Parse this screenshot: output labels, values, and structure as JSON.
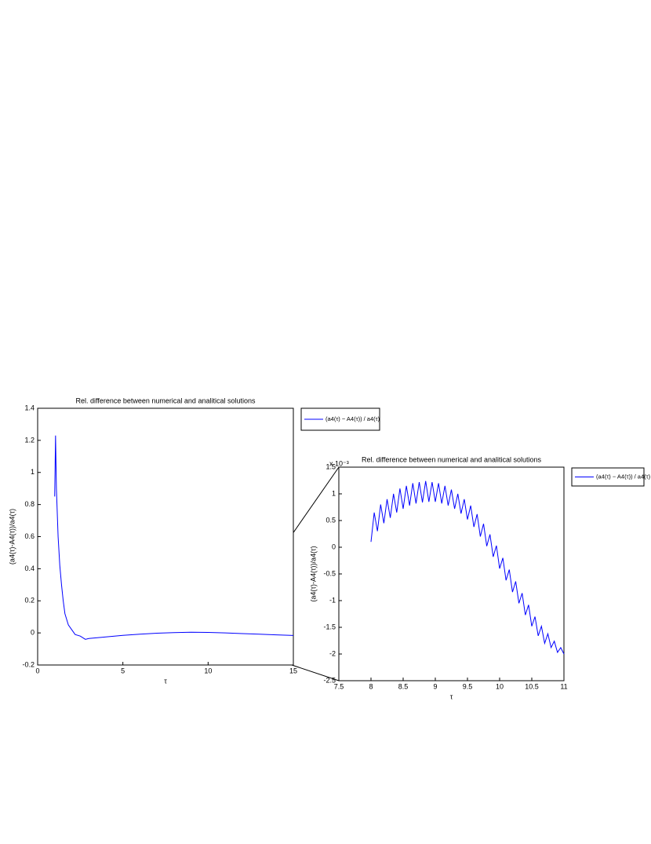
{
  "chart_data": [
    {
      "type": "line",
      "title": "Rel. difference between numerical and analitical solutions",
      "x_label": "τ",
      "y_label": "(a4(τ)-A4(τ))/a4(τ)",
      "x": [
        1,
        1.05,
        1.1,
        1.2,
        1.3,
        1.4,
        1.5,
        1.6,
        1.8,
        2,
        2.2,
        2.5,
        2.8,
        3,
        3.5,
        4,
        5,
        6,
        7,
        8,
        9,
        10,
        11,
        12,
        13,
        14,
        15
      ],
      "series": [
        {
          "name": "(a4(τ) − A4(τ)) / a4(τ)",
          "color": "#0000ff",
          "values": [
            0.85,
            1.23,
            0.9,
            0.6,
            0.42,
            0.3,
            0.2,
            0.12,
            0.05,
            0.02,
            -0.01,
            -0.02,
            -0.04,
            -0.035,
            -0.03,
            -0.025,
            -0.015,
            -0.008,
            -0.002,
            0.002,
            0.004,
            0.003,
            0,
            -0.004,
            -0.008,
            -0.012,
            -0.016
          ]
        }
      ],
      "xlim": [
        0,
        15
      ],
      "xticks": [
        0,
        5,
        10,
        15
      ],
      "ylim": [
        -0.2,
        1.4
      ],
      "yticks": [
        -0.2,
        0,
        0.2,
        0.4,
        0.6,
        0.8,
        1,
        1.2,
        1.4
      ],
      "legend": "outside-right"
    },
    {
      "type": "line",
      "title": "Rel. difference between numerical and analitical solutions",
      "x_label": "τ",
      "y_label": "(a4(τ)-A4(τ))/a4(τ)",
      "y_scale_label": "x 10⁻³",
      "x": [
        8,
        8.05,
        8.1,
        8.15,
        8.2,
        8.25,
        8.3,
        8.35,
        8.4,
        8.45,
        8.5,
        8.55,
        8.6,
        8.65,
        8.7,
        8.75,
        8.8,
        8.85,
        8.9,
        8.95,
        9,
        9.05,
        9.1,
        9.15,
        9.2,
        9.25,
        9.3,
        9.35,
        9.4,
        9.45,
        9.5,
        9.55,
        9.6,
        9.65,
        9.7,
        9.75,
        9.8,
        9.85,
        9.9,
        9.95,
        10,
        10.05,
        10.1,
        10.15,
        10.2,
        10.25,
        10.3,
        10.35,
        10.4,
        10.45,
        10.5,
        10.55,
        10.6,
        10.65,
        10.7,
        10.75,
        10.8,
        10.85,
        10.9,
        10.95,
        11
      ],
      "series": [
        {
          "name": "(a4(τ) − A4(τ)) / a4(τ)",
          "color": "#0000ff",
          "values": [
            0.1,
            0.65,
            0.3,
            0.8,
            0.45,
            0.9,
            0.55,
            1.0,
            0.65,
            1.1,
            0.72,
            1.15,
            0.78,
            1.2,
            0.82,
            1.22,
            0.84,
            1.24,
            0.85,
            1.22,
            0.85,
            1.2,
            0.82,
            1.15,
            0.78,
            1.08,
            0.72,
            1.0,
            0.63,
            0.9,
            0.52,
            0.78,
            0.38,
            0.62,
            0.2,
            0.44,
            0.02,
            0.24,
            -0.18,
            0.03,
            -0.4,
            -0.2,
            -0.62,
            -0.42,
            -0.84,
            -0.64,
            -1.05,
            -0.86,
            -1.27,
            -1.08,
            -1.48,
            -1.3,
            -1.66,
            -1.48,
            -1.8,
            -1.62,
            -1.88,
            -1.76,
            -1.97,
            -1.88,
            -2.0
          ]
        }
      ],
      "xlim": [
        7.5,
        11
      ],
      "xticks": [
        7.5,
        8,
        8.5,
        9,
        9.5,
        10,
        10.5,
        11
      ],
      "ylim": [
        -2.5,
        1.5
      ],
      "yticks": [
        -2.5,
        -2,
        -1.5,
        -1,
        -0.5,
        0,
        0.5,
        1,
        1.5
      ],
      "legend": "outside-right"
    }
  ]
}
